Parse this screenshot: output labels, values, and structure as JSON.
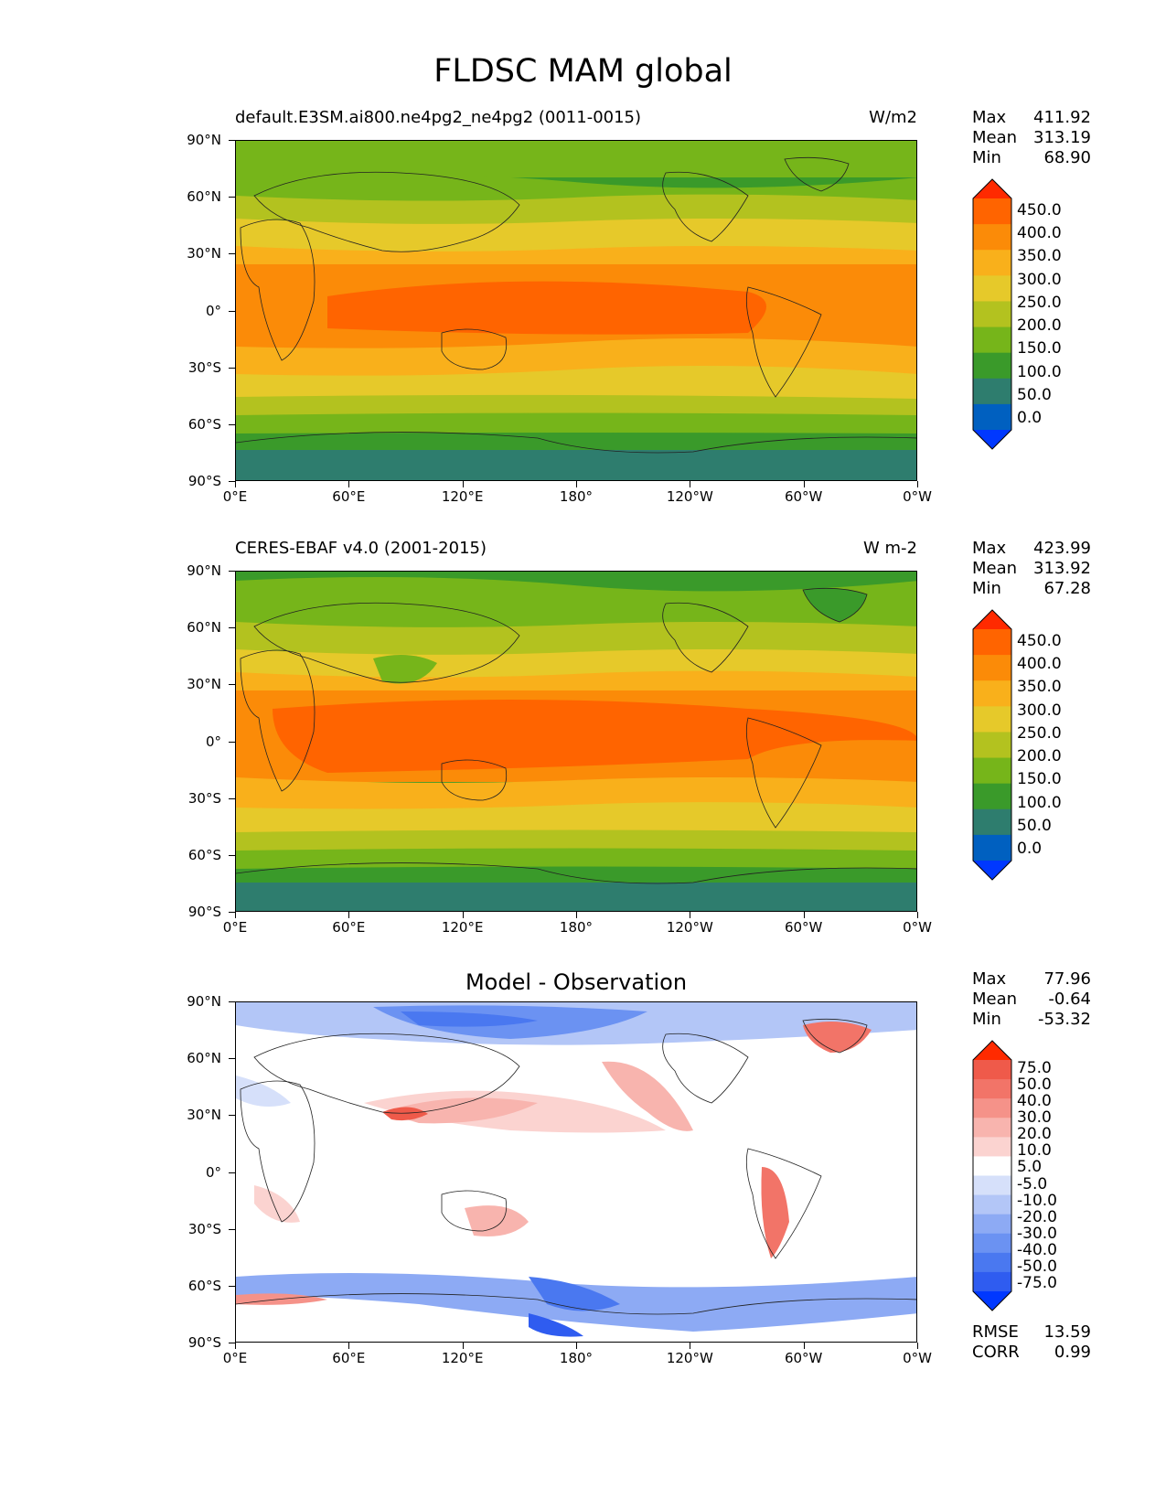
{
  "figure_title": "FLDSC MAM global",
  "lat_ticks": [
    "90°N",
    "60°N",
    "30°N",
    "0°",
    "30°S",
    "60°S",
    "90°S"
  ],
  "lon_ticks": [
    "0°E",
    "60°E",
    "120°E",
    "180°",
    "120°W",
    "60°W",
    "0°W"
  ],
  "panels": [
    {
      "left_title": "default.E3SM.ai800.ne4pg2_ne4pg2 (0011-0015)",
      "right_title": "W/m2",
      "stats": {
        "max_label": "Max",
        "max": "411.92",
        "mean_label": "Mean",
        "mean": "313.19",
        "min_label": "Min",
        "min": "68.90"
      },
      "colorbar_labels": [
        "450.0",
        "400.0",
        "350.0",
        "300.0",
        "250.0",
        "200.0",
        "150.0",
        "100.0",
        "50.0",
        "0.0"
      ]
    },
    {
      "left_title": "CERES-EBAF v4.0 (2001-2015)",
      "right_title": "W m-2",
      "stats": {
        "max_label": "Max",
        "max": "423.99",
        "mean_label": "Mean",
        "mean": "313.92",
        "min_label": "Min",
        "min": "67.28"
      },
      "colorbar_labels": [
        "450.0",
        "400.0",
        "350.0",
        "300.0",
        "250.0",
        "200.0",
        "150.0",
        "100.0",
        "50.0",
        "0.0"
      ]
    },
    {
      "center_title": "Model - Observation",
      "stats": {
        "max_label": "Max",
        "max": "77.96",
        "mean_label": "Mean",
        "mean": "-0.64",
        "min_label": "Min",
        "min": "-53.32"
      },
      "colorbar_labels": [
        "75.0",
        "50.0",
        "40.0",
        "30.0",
        "20.0",
        "10.0",
        "5.0",
        "-5.0",
        "-10.0",
        "-20.0",
        "-30.0",
        "-40.0",
        "-50.0",
        "-75.0"
      ],
      "metrics": {
        "rmse_label": "RMSE",
        "rmse": "13.59",
        "corr_label": "CORR",
        "corr": "0.99"
      }
    }
  ],
  "colors": {
    "abs_scale": [
      "#0038ff",
      "#0060c0",
      "#2e7d6e",
      "#3a9a2a",
      "#76b51a",
      "#b3c21f",
      "#e6c92a",
      "#f9b01b",
      "#fb8b08",
      "#ff6400",
      "#ff2a00"
    ],
    "diff_scale": [
      "#0038ff",
      "#2f5cf0",
      "#4a78f0",
      "#6b92f2",
      "#8daaf4",
      "#b3c6f7",
      "#d6e0fa",
      "#ffffff",
      "#fbd3d0",
      "#f8b4ae",
      "#f59289",
      "#f27468",
      "#ef5a4a",
      "#ff2a00"
    ]
  }
}
